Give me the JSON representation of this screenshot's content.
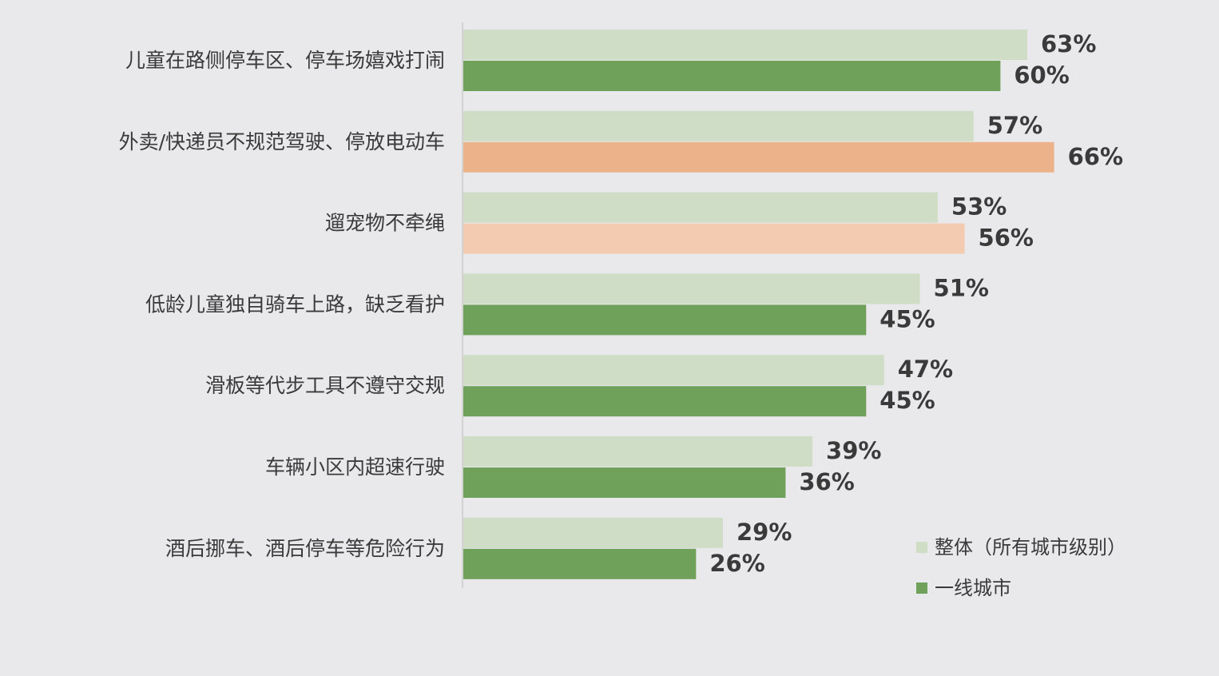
{
  "chart_data": {
    "type": "bar",
    "orientation": "horizontal",
    "categories": [
      "儿童在路侧停车区、停车场嬉戏打闹",
      "外卖/快递员不规范驾驶、停放电动车",
      "遛宠物不牵绳",
      "低龄儿童独自骑车上路，缺乏看护",
      "滑板等代步工具不遵守交规",
      "车辆小区内超速行驶",
      "酒后挪车、酒后停车等危险行为"
    ],
    "series": [
      {
        "name": "整体（所有城市级别）",
        "values": [
          63,
          57,
          53,
          51,
          47,
          39,
          29
        ],
        "labels": [
          "63%",
          "57%",
          "53%",
          "51%",
          "47%",
          "39%",
          "29%"
        ],
        "color": "#cfdcc6",
        "bar_colors": [
          "#cfdcc6",
          "#cfdcc6",
          "#cfdcc6",
          "#cfdcc6",
          "#cfdcc6",
          "#cfdcc6",
          "#cfdcc6"
        ]
      },
      {
        "name": "一线城市",
        "values": [
          60,
          66,
          56,
          45,
          45,
          36,
          26
        ],
        "labels": [
          "60%",
          "66%",
          "56%",
          "45%",
          "45%",
          "36%",
          "26%"
        ],
        "color": "#6fa15a",
        "bar_colors": [
          "#6fa15a",
          "#ecb28a",
          "#f3cbb1",
          "#6fa15a",
          "#6fa15a",
          "#6fa15a",
          "#6fa15a"
        ]
      }
    ],
    "xlim": [
      0,
      100
    ],
    "grid": false,
    "legend_position": "bottom-right",
    "axis_line_color": "#cccccc"
  }
}
